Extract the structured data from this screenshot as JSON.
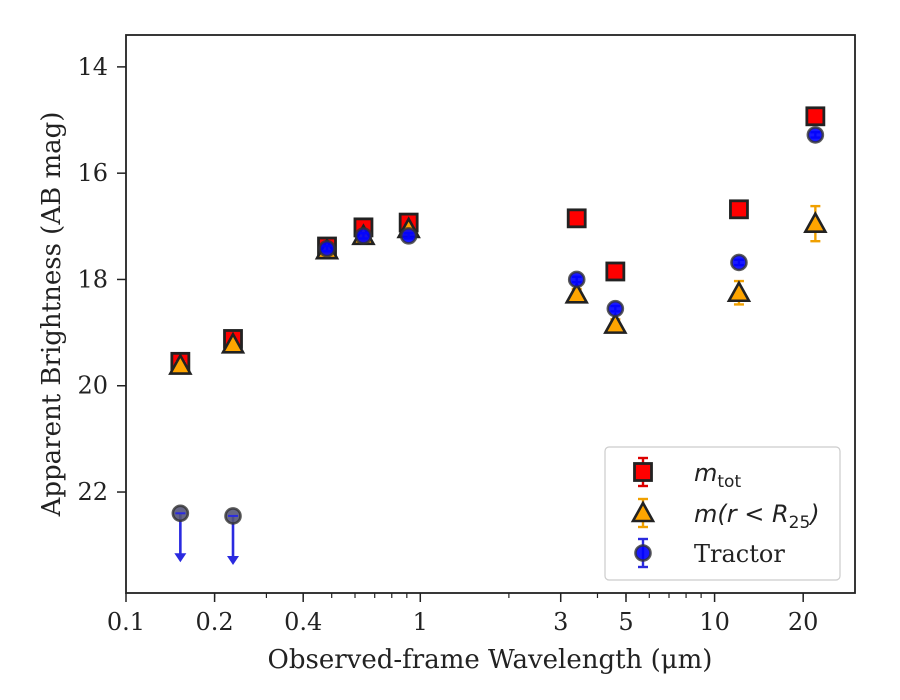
{
  "chart_data": {
    "type": "scatter",
    "xlabel": "Observed-frame Wavelength (μm)",
    "ylabel": "Apparent Brightness (AB mag)",
    "xscale": "log",
    "yaxis_inverted": true,
    "xlim": [
      0.1,
      30
    ],
    "ylim": [
      23.9,
      13.4
    ],
    "xticks": [
      {
        "value": 0.1,
        "label": "0.1"
      },
      {
        "value": 0.2,
        "label": "0.2"
      },
      {
        "value": 0.4,
        "label": "0.4"
      },
      {
        "value": 1,
        "label": "1"
      },
      {
        "value": 3,
        "label": "3"
      },
      {
        "value": 5,
        "label": "5"
      },
      {
        "value": 10,
        "label": "10"
      },
      {
        "value": 20,
        "label": "20"
      }
    ],
    "yticks": [
      {
        "value": 14,
        "label": "14"
      },
      {
        "value": 16,
        "label": "16"
      },
      {
        "value": 18,
        "label": "18"
      },
      {
        "value": 20,
        "label": "20"
      },
      {
        "value": 22,
        "label": "22"
      }
    ],
    "grid": false,
    "legend_position": "lower-right",
    "series": [
      {
        "name": "m_tot",
        "legend_main": "m",
        "legend_sub": "tot",
        "marker": "square",
        "color": "#ff0000",
        "edge_color": "#222222",
        "err_color": "#dd0000",
        "points": [
          {
            "x": 0.153,
            "y": 19.55,
            "err": 0.1
          },
          {
            "x": 0.231,
            "y": 19.12,
            "err": 0.08
          },
          {
            "x": 0.482,
            "y": 17.38,
            "err": 0.05
          },
          {
            "x": 0.641,
            "y": 17.02,
            "err": 0.05
          },
          {
            "x": 0.913,
            "y": 16.93,
            "err": 0.05
          },
          {
            "x": 3.4,
            "y": 16.85,
            "err": 0.05
          },
          {
            "x": 4.6,
            "y": 17.85,
            "err": 0.05
          },
          {
            "x": 12.1,
            "y": 16.68,
            "err": 0.05
          },
          {
            "x": 22.0,
            "y": 14.93,
            "err": 0.05
          }
        ]
      },
      {
        "name": "m(r<R25)",
        "legend_main": "m(r < R",
        "legend_sub": "25",
        "legend_tail": ")",
        "marker": "triangle",
        "color": "#ffa500",
        "edge_color": "#222222",
        "err_color": "#f0a000",
        "points": [
          {
            "x": 0.153,
            "y": 19.62,
            "err": 0.06
          },
          {
            "x": 0.231,
            "y": 19.22,
            "err": 0.05
          },
          {
            "x": 0.482,
            "y": 17.45,
            "err": 0.05
          },
          {
            "x": 0.641,
            "y": 17.18,
            "err": 0.05
          },
          {
            "x": 0.913,
            "y": 17.05,
            "err": 0.05
          },
          {
            "x": 3.4,
            "y": 18.28,
            "err": 0.1
          },
          {
            "x": 4.6,
            "y": 18.85,
            "err": 0.1
          },
          {
            "x": 12.1,
            "y": 18.25,
            "err": 0.22
          },
          {
            "x": 22.0,
            "y": 16.95,
            "err": 0.33
          }
        ]
      },
      {
        "name": "Tractor",
        "marker": "circle",
        "color": "#0000ff",
        "edge_color": "#333333",
        "err_color": "#2b2bdd",
        "points": [
          {
            "x": 0.153,
            "y": 22.4,
            "upper_limit": true
          },
          {
            "x": 0.231,
            "y": 22.45,
            "upper_limit": true
          },
          {
            "x": 0.482,
            "y": 17.42,
            "err": 0.05
          },
          {
            "x": 0.641,
            "y": 17.18,
            "err": 0.05
          },
          {
            "x": 0.913,
            "y": 17.18,
            "err": 0.05
          },
          {
            "x": 3.4,
            "y": 18.0,
            "err": 0.05
          },
          {
            "x": 4.6,
            "y": 18.55,
            "err": 0.05
          },
          {
            "x": 12.1,
            "y": 17.68,
            "err": 0.05
          },
          {
            "x": 22.0,
            "y": 15.28,
            "err": 0.05
          }
        ]
      }
    ]
  }
}
